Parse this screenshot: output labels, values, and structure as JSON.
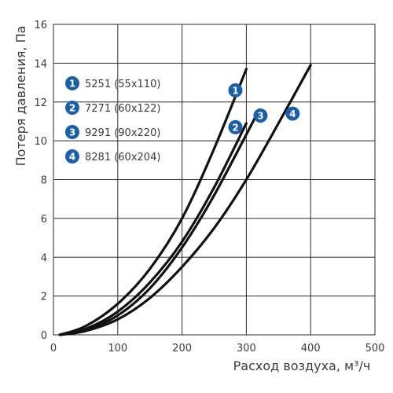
{
  "chart_data": {
    "type": "line",
    "xlabel": "Расход воздуха, м³/ч",
    "ylabel": "Потеря давления, Па",
    "xlim": [
      0,
      500
    ],
    "ylim": [
      0,
      16
    ],
    "xticks": [
      0,
      100,
      200,
      300,
      400,
      500
    ],
    "yticks": [
      0,
      2,
      4,
      6,
      8,
      10,
      12,
      14,
      16
    ],
    "grid": true,
    "legend_position": "top-left",
    "badge_color": "#1a5fa8",
    "series": [
      {
        "name": "5251 (55x110)",
        "badge": "1",
        "x": [
          10,
          50,
          100,
          150,
          200,
          250,
          300
        ],
        "y": [
          0,
          0.45,
          1.6,
          3.4,
          6.0,
          9.6,
          13.7
        ]
      },
      {
        "name": "7271 (60x122)",
        "badge": "2",
        "x": [
          10,
          50,
          100,
          150,
          200,
          250,
          300
        ],
        "y": [
          0,
          0.3,
          1.2,
          2.7,
          4.8,
          7.6,
          10.9
        ]
      },
      {
        "name": "9291 (90x220)",
        "badge": "3",
        "x": [
          10,
          50,
          100,
          150,
          200,
          250,
          320
        ],
        "y": [
          0,
          0.25,
          1.0,
          2.4,
          4.5,
          7.2,
          11.6
        ]
      },
      {
        "name": "8281 (60x204)",
        "badge": "4",
        "x": [
          10,
          50,
          100,
          150,
          200,
          250,
          300,
          350,
          400
        ],
        "y": [
          0,
          0.2,
          0.8,
          1.9,
          3.5,
          5.5,
          8.0,
          10.9,
          13.9
        ]
      }
    ],
    "curve_labels": [
      {
        "badge": "1",
        "x": 283,
        "y": 12.6
      },
      {
        "badge": "2",
        "x": 283,
        "y": 10.7
      },
      {
        "badge": "3",
        "x": 322,
        "y": 11.3
      },
      {
        "badge": "4",
        "x": 372,
        "y": 11.4
      }
    ]
  }
}
